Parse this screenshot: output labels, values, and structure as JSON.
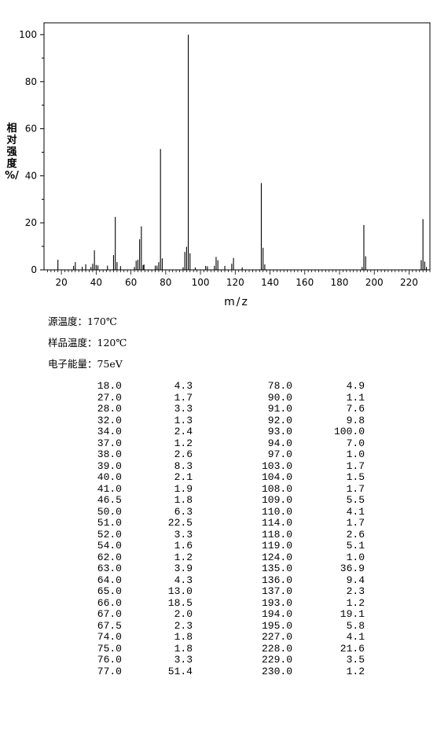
{
  "chart_data": {
    "type": "bar",
    "xlabel": "m/z",
    "ylabel": [
      "相",
      "对",
      "强",
      "度",
      "%/"
    ],
    "xlim": [
      10,
      232
    ],
    "ylim": [
      0,
      105
    ],
    "xticks": [
      20,
      40,
      60,
      80,
      100,
      120,
      140,
      160,
      180,
      200,
      220
    ],
    "yticks": [
      0,
      20,
      40,
      60,
      80,
      100
    ],
    "peaks": [
      [
        18.0,
        4.3
      ],
      [
        27.0,
        1.7
      ],
      [
        28.0,
        3.3
      ],
      [
        32.0,
        1.3
      ],
      [
        34.0,
        2.4
      ],
      [
        37.0,
        1.2
      ],
      [
        38.0,
        2.6
      ],
      [
        39.0,
        8.3
      ],
      [
        40.0,
        2.1
      ],
      [
        41.0,
        1.9
      ],
      [
        46.5,
        1.8
      ],
      [
        50.0,
        6.3
      ],
      [
        51.0,
        22.5
      ],
      [
        52.0,
        3.3
      ],
      [
        54.0,
        1.6
      ],
      [
        62.0,
        1.2
      ],
      [
        63.0,
        3.9
      ],
      [
        64.0,
        4.3
      ],
      [
        65.0,
        13.0
      ],
      [
        66.0,
        18.5
      ],
      [
        67.0,
        2.0
      ],
      [
        67.5,
        2.3
      ],
      [
        74.0,
        1.8
      ],
      [
        75.0,
        1.8
      ],
      [
        76.0,
        3.3
      ],
      [
        77.0,
        51.4
      ],
      [
        78.0,
        4.9
      ],
      [
        90.0,
        1.1
      ],
      [
        91.0,
        7.6
      ],
      [
        92.0,
        9.8
      ],
      [
        93.0,
        100.0
      ],
      [
        94.0,
        7.0
      ],
      [
        97.0,
        1.0
      ],
      [
        103.0,
        1.7
      ],
      [
        104.0,
        1.5
      ],
      [
        108.0,
        1.7
      ],
      [
        109.0,
        5.5
      ],
      [
        110.0,
        4.1
      ],
      [
        114.0,
        1.7
      ],
      [
        118.0,
        2.6
      ],
      [
        119.0,
        5.1
      ],
      [
        124.0,
        1.0
      ],
      [
        135.0,
        36.9
      ],
      [
        136.0,
        9.4
      ],
      [
        137.0,
        2.3
      ],
      [
        193.0,
        1.2
      ],
      [
        194.0,
        19.1
      ],
      [
        195.0,
        5.8
      ],
      [
        227.0,
        4.1
      ],
      [
        228.0,
        21.6
      ],
      [
        229.0,
        3.5
      ],
      [
        230.0,
        1.2
      ]
    ]
  },
  "conditions": {
    "source_temp": "源温度：170℃",
    "sample_temp": "样品温度：120℃",
    "electron_energy": "电子能量：75eV"
  },
  "table": {
    "rows": [
      [
        "18.0",
        "4.3",
        "78.0",
        "4.9"
      ],
      [
        "27.0",
        "1.7",
        "90.0",
        "1.1"
      ],
      [
        "28.0",
        "3.3",
        "91.0",
        "7.6"
      ],
      [
        "32.0",
        "1.3",
        "92.0",
        "9.8"
      ],
      [
        "34.0",
        "2.4",
        "93.0",
        "100.0"
      ],
      [
        "37.0",
        "1.2",
        "94.0",
        "7.0"
      ],
      [
        "38.0",
        "2.6",
        "97.0",
        "1.0"
      ],
      [
        "39.0",
        "8.3",
        "103.0",
        "1.7"
      ],
      [
        "40.0",
        "2.1",
        "104.0",
        "1.5"
      ],
      [
        "41.0",
        "1.9",
        "108.0",
        "1.7"
      ],
      [
        "46.5",
        "1.8",
        "109.0",
        "5.5"
      ],
      [
        "50.0",
        "6.3",
        "110.0",
        "4.1"
      ],
      [
        "51.0",
        "22.5",
        "114.0",
        "1.7"
      ],
      [
        "52.0",
        "3.3",
        "118.0",
        "2.6"
      ],
      [
        "54.0",
        "1.6",
        "119.0",
        "5.1"
      ],
      [
        "62.0",
        "1.2",
        "124.0",
        "1.0"
      ],
      [
        "63.0",
        "3.9",
        "135.0",
        "36.9"
      ],
      [
        "64.0",
        "4.3",
        "136.0",
        "9.4"
      ],
      [
        "65.0",
        "13.0",
        "137.0",
        "2.3"
      ],
      [
        "66.0",
        "18.5",
        "193.0",
        "1.2"
      ],
      [
        "67.0",
        "2.0",
        "194.0",
        "19.1"
      ],
      [
        "67.5",
        "2.3",
        "195.0",
        "5.8"
      ],
      [
        "74.0",
        "1.8",
        "227.0",
        "4.1"
      ],
      [
        "75.0",
        "1.8",
        "228.0",
        "21.6"
      ],
      [
        "76.0",
        "3.3",
        "229.0",
        "3.5"
      ],
      [
        "77.0",
        "51.4",
        "230.0",
        "1.2"
      ]
    ]
  }
}
